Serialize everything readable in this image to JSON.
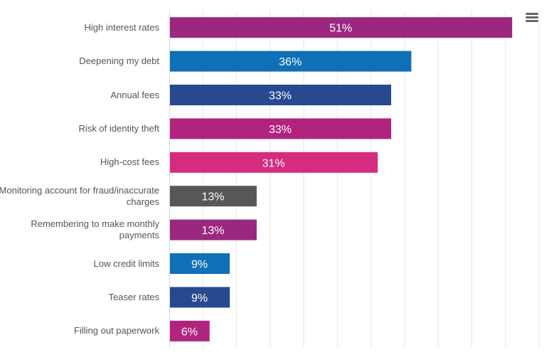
{
  "chart_data": {
    "type": "bar",
    "orientation": "horizontal",
    "categories": [
      "High interest rates",
      "Deepening my debt",
      "Annual fees",
      "Risk of identity theft",
      "High-cost fees",
      "Monitoring account for fraud/inaccurate charges",
      "Remembering to make monthly payments",
      "Low credit limits",
      "Teaser rates",
      "Filling out paperwork"
    ],
    "values": [
      51,
      36,
      33,
      33,
      31,
      13,
      13,
      9,
      9,
      6
    ],
    "data_labels": [
      "51%",
      "36%",
      "33%",
      "33%",
      "31%",
      "13%",
      "13%",
      "9%",
      "9%",
      "6%"
    ],
    "colors": [
      "#9a2880",
      "#0f70b7",
      "#27498f",
      "#b0237f",
      "#d62c80",
      "#575757",
      "#9a2880",
      "#0f70b7",
      "#27498f",
      "#b0237f"
    ],
    "xlim": [
      0,
      55
    ],
    "grid_step": 5,
    "grid": true,
    "legend": "none",
    "title": "",
    "xlabel": "",
    "ylabel": ""
  },
  "menu": {
    "icon": "hamburger-menu-icon"
  }
}
